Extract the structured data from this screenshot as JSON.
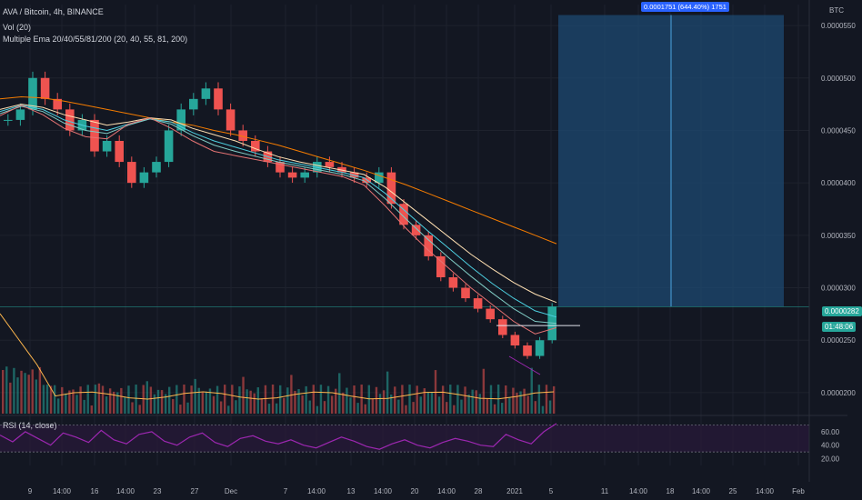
{
  "header": {
    "symbol_line": "AVA / Bitcoin, 4h, BINANCE",
    "vol_line": "Vol (20)",
    "ema_line": "Multiple Ema 20/40/55/81/200 (20, 40, 55, 81, 200)",
    "rsi_line": "RSI (14, close)",
    "axis_unit": "BTC"
  },
  "tags": {
    "current_price": "0.0000282",
    "sub_tag": "01:48:06",
    "measure": "0.0001751 (644.40%) 1751"
  },
  "colors": {
    "background": "#131722",
    "up": "#26a69a",
    "down": "#ef5350",
    "rsi": "#9c27b0",
    "measure_box": "#1e4a72",
    "ema_200": "#f57c00",
    "ema_81": "#ffe0b2",
    "ema_55": "#4dd0e1",
    "ema_40": "#80cbc4",
    "ema_20": "#e57373"
  },
  "chart_data": {
    "type": "line",
    "price_axis_ticks": [
      "0.0000550",
      "0.0000500",
      "0.0000450",
      "0.0000400",
      "0.0000350",
      "0.0000300",
      "0.0000250",
      "0.0000200"
    ],
    "price_axis_values": [
      5.5e-05,
      5e-05,
      4.5e-05,
      4e-05,
      3.5e-05,
      3e-05,
      2.5e-05,
      2e-05
    ],
    "rsi_axis_ticks": [
      "60.00",
      "40.00",
      "20.00"
    ],
    "rsi_axis_values": [
      60,
      40,
      20
    ],
    "x_ticks": [
      "9",
      "14:00",
      "16",
      "14:00",
      "23",
      "27",
      "Dec",
      "7",
      "14:00",
      "13",
      "14:00",
      "20",
      "14:00",
      "28",
      "2021",
      "5",
      "11",
      "14:00",
      "18",
      "14:00",
      "25",
      "14:00",
      "Feb"
    ],
    "price_series": {
      "name": "AVA/BTC close (approx)",
      "values": [
        4.6e-05,
        4.7e-05,
        5e-05,
        4.8e-05,
        4.7e-05,
        4.5e-05,
        4.6e-05,
        4.3e-05,
        4.4e-05,
        4.2e-05,
        4e-05,
        4.1e-05,
        4.2e-05,
        4.5e-05,
        4.7e-05,
        4.8e-05,
        4.9e-05,
        4.7e-05,
        4.5e-05,
        4.4e-05,
        4.3e-05,
        4.2e-05,
        4.1e-05,
        4.05e-05,
        4.1e-05,
        4.2e-05,
        4.15e-05,
        4.1e-05,
        4.05e-05,
        4e-05,
        4.1e-05,
        3.8e-05,
        3.6e-05,
        3.5e-05,
        3.3e-05,
        3.1e-05,
        3e-05,
        2.9e-05,
        2.8e-05,
        2.7e-05,
        2.55e-05,
        2.45e-05,
        2.35e-05,
        2.5e-05,
        2.82e-05
      ]
    },
    "ema_series": [
      {
        "name": "EMA 200",
        "values": [
          4.8e-05,
          4.82e-05,
          4.81e-05,
          4.78e-05,
          4.74e-05,
          4.7e-05,
          4.66e-05,
          4.62e-05,
          4.58e-05,
          4.55e-05,
          4.5e-05,
          4.46e-05,
          4.41e-05,
          4.36e-05,
          4.3e-05,
          4.24e-05,
          4.18e-05,
          4.12e-05,
          4.05e-05,
          3.98e-05,
          3.9e-05,
          3.82e-05,
          3.74e-05,
          3.66e-05,
          3.58e-05,
          3.5e-05,
          3.42e-05
        ]
      },
      {
        "name": "EMA 81",
        "values": [
          4.7e-05,
          4.75e-05,
          4.72e-05,
          4.65e-05,
          4.6e-05,
          4.55e-05,
          4.58e-05,
          4.62e-05,
          4.6e-05,
          4.52e-05,
          4.46e-05,
          4.4e-05,
          4.32e-05,
          4.25e-05,
          4.2e-05,
          4.16e-05,
          4.12e-05,
          4.08e-05,
          3.96e-05,
          3.8e-05,
          3.64e-05,
          3.48e-05,
          3.32e-05,
          3.18e-05,
          3.05e-05,
          2.94e-05,
          2.86e-05
        ]
      },
      {
        "name": "EMA 55",
        "values": [
          4.68e-05,
          4.74e-05,
          4.7e-05,
          4.6e-05,
          4.54e-05,
          4.5e-05,
          4.56e-05,
          4.61e-05,
          4.58e-05,
          4.48e-05,
          4.4e-05,
          4.34e-05,
          4.28e-05,
          4.22e-05,
          4.18e-05,
          4.14e-05,
          4.1e-05,
          4.05e-05,
          3.9e-05,
          3.72e-05,
          3.54e-05,
          3.37e-05,
          3.2e-05,
          3.04e-05,
          2.9e-05,
          2.78e-05,
          2.72e-05
        ]
      },
      {
        "name": "EMA 40",
        "values": [
          4.66e-05,
          4.73e-05,
          4.68e-05,
          4.57e-05,
          4.5e-05,
          4.47e-05,
          4.55e-05,
          4.61e-05,
          4.56e-05,
          4.45e-05,
          4.36e-05,
          4.3e-05,
          4.25e-05,
          4.2e-05,
          4.16e-05,
          4.12e-05,
          4.08e-05,
          4.02e-05,
          3.85e-05,
          3.65e-05,
          3.46e-05,
          3.28e-05,
          3.11e-05,
          2.95e-05,
          2.8e-05,
          2.68e-05,
          2.66e-05
        ]
      },
      {
        "name": "EMA 20",
        "values": [
          4.64e-05,
          4.74e-05,
          4.65e-05,
          4.52e-05,
          4.44e-05,
          4.42e-05,
          4.56e-05,
          4.62e-05,
          4.52e-05,
          4.4e-05,
          4.3e-05,
          4.26e-05,
          4.22e-05,
          4.18e-05,
          4.14e-05,
          4.1e-05,
          4.06e-05,
          3.98e-05,
          3.78e-05,
          3.56e-05,
          3.36e-05,
          3.18e-05,
          3e-05,
          2.84e-05,
          2.68e-05,
          2.56e-05,
          2.62e-05
        ]
      }
    ],
    "rsi_values": [
      55,
      45,
      60,
      50,
      40,
      58,
      52,
      44,
      62,
      48,
      42,
      56,
      60,
      46,
      40,
      52,
      58,
      44,
      38,
      50,
      54,
      46,
      42,
      48,
      40,
      36,
      44,
      52,
      46,
      38,
      34,
      42,
      48,
      40,
      36,
      44,
      50,
      46,
      40,
      38,
      56,
      48,
      42,
      60,
      72
    ],
    "measure_range": {
      "from": 2.82e-05,
      "to": 5.6e-05
    },
    "support_level": 2.64e-05,
    "ylim": [
      1.8e-05,
      5.7e-05
    ],
    "grid": true
  }
}
